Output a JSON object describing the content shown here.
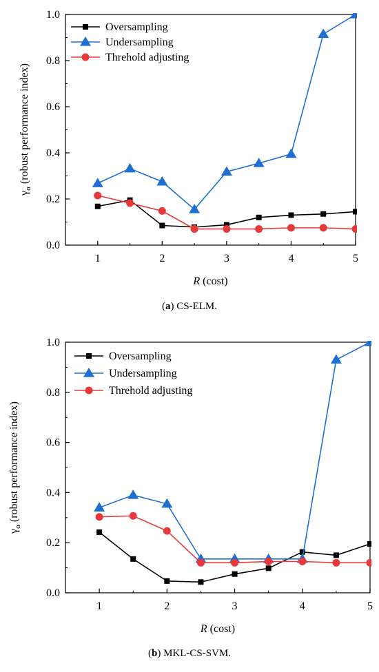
{
  "chart_data": [
    {
      "type": "line",
      "caption_letter": "a",
      "caption_text": " CS-ELM.",
      "xlabel_symbol": "R",
      "xlabel_text": " (cost)",
      "ylabel_symbol": "γ",
      "ylabel_subscript": "α",
      "ylabel_text": " (robust performance index)",
      "xlim": [
        0.5,
        5
      ],
      "ylim": [
        0,
        1
      ],
      "xticks": [
        1,
        2,
        3,
        4,
        5
      ],
      "yticks": [
        0.0,
        0.2,
        0.4,
        0.6,
        0.8,
        1.0
      ],
      "ytick_labels": [
        "0.0",
        "0.2",
        "0.4",
        "0.6",
        "0.8",
        "1.0"
      ],
      "legend_position": "top-left",
      "x": [
        1,
        1.5,
        2,
        2.5,
        3,
        3.5,
        4,
        4.5,
        5
      ],
      "series": [
        {
          "name": "Oversampling",
          "color": "#000000",
          "marker": "square",
          "values": [
            0.168,
            0.195,
            0.085,
            0.078,
            0.088,
            0.12,
            0.13,
            0.135,
            0.145
          ]
        },
        {
          "name": "Undersampling",
          "color": "#1f6fd1",
          "marker": "triangle",
          "values": [
            0.268,
            0.332,
            0.275,
            0.155,
            0.318,
            0.355,
            0.395,
            0.915,
            1.0
          ]
        },
        {
          "name": "Threhold adjusting",
          "color": "#e8393a",
          "marker": "circle",
          "values": [
            0.215,
            0.182,
            0.148,
            0.07,
            0.07,
            0.07,
            0.075,
            0.075,
            0.07
          ]
        }
      ]
    },
    {
      "type": "line",
      "caption_letter": "b",
      "caption_text": " MKL-CS-SVM.",
      "xlabel_symbol": "R",
      "xlabel_text": " (cost)",
      "ylabel_symbol": "γ",
      "ylabel_subscript": "α",
      "ylabel_text": " (robust performance index)",
      "xlim": [
        0.5,
        5
      ],
      "ylim": [
        0,
        1
      ],
      "xticks": [
        1,
        2,
        3,
        4,
        5
      ],
      "yticks": [
        0.0,
        0.2,
        0.4,
        0.6,
        0.8,
        1.0
      ],
      "ytick_labels": [
        "0.0",
        "0.2",
        "0.4",
        "0.6",
        "0.8",
        "1.0"
      ],
      "legend_position": "top-left",
      "x": [
        1,
        1.5,
        2,
        2.5,
        3,
        3.5,
        4,
        4.5,
        5
      ],
      "series": [
        {
          "name": "Oversampling",
          "color": "#000000",
          "marker": "square",
          "values": [
            0.242,
            0.135,
            0.047,
            0.043,
            0.075,
            0.098,
            0.163,
            0.15,
            0.195
          ]
        },
        {
          "name": "Undersampling",
          "color": "#1f6fd1",
          "marker": "triangle",
          "values": [
            0.34,
            0.39,
            0.355,
            0.135,
            0.135,
            0.135,
            0.135,
            0.93,
            1.0
          ]
        },
        {
          "name": "Threhold adjusting",
          "color": "#e8393a",
          "marker": "circle",
          "values": [
            0.303,
            0.307,
            0.247,
            0.12,
            0.12,
            0.125,
            0.125,
            0.12,
            0.12
          ]
        }
      ]
    }
  ]
}
